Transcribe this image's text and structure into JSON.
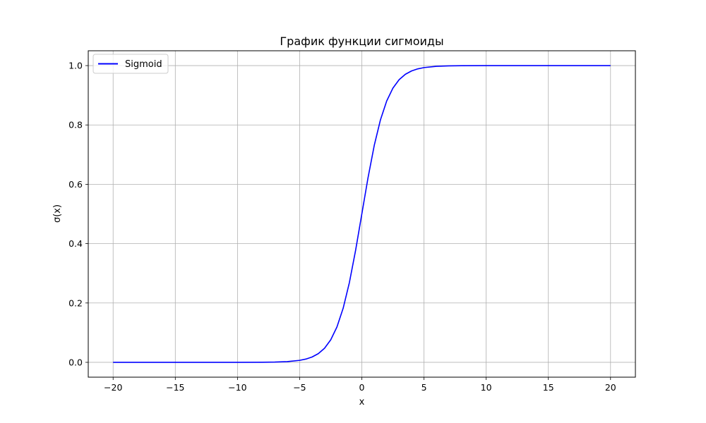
{
  "chart_data": {
    "type": "line",
    "title": "График функции сигмоиды",
    "xlabel": "x",
    "ylabel": "σ(x)",
    "xlim": [
      -22,
      22
    ],
    "ylim": [
      -0.05,
      1.05
    ],
    "xticks": [
      -20,
      -15,
      -10,
      -5,
      0,
      5,
      10,
      15,
      20
    ],
    "xtick_labels": [
      "−20",
      "−15",
      "−10",
      "−5",
      "0",
      "5",
      "10",
      "15",
      "20"
    ],
    "yticks": [
      0.0,
      0.2,
      0.4,
      0.6,
      0.8,
      1.0
    ],
    "ytick_labels": [
      "0.0",
      "0.2",
      "0.4",
      "0.6",
      "0.8",
      "1.0"
    ],
    "grid": true,
    "legend_position": "top-left",
    "series": [
      {
        "name": "Sigmoid",
        "color": "#0000ff",
        "x": [
          -20,
          -15,
          -10,
          -8,
          -7,
          -6,
          -5,
          -4.5,
          -4,
          -3.5,
          -3,
          -2.5,
          -2,
          -1.5,
          -1,
          -0.5,
          0,
          0.5,
          1,
          1.5,
          2,
          2.5,
          3,
          3.5,
          4,
          4.5,
          5,
          6,
          7,
          8,
          10,
          15,
          20
        ],
        "y": [
          0.0,
          0.0,
          5e-05,
          0.00034,
          0.00091,
          0.00247,
          0.00669,
          0.01099,
          0.01799,
          0.02931,
          0.04743,
          0.07586,
          0.1192,
          0.18243,
          0.26894,
          0.37754,
          0.5,
          0.62246,
          0.73106,
          0.81757,
          0.8808,
          0.92414,
          0.95257,
          0.97069,
          0.98201,
          0.98901,
          0.99331,
          0.99753,
          0.99909,
          0.99966,
          0.99995,
          1.0,
          1.0
        ]
      }
    ]
  }
}
